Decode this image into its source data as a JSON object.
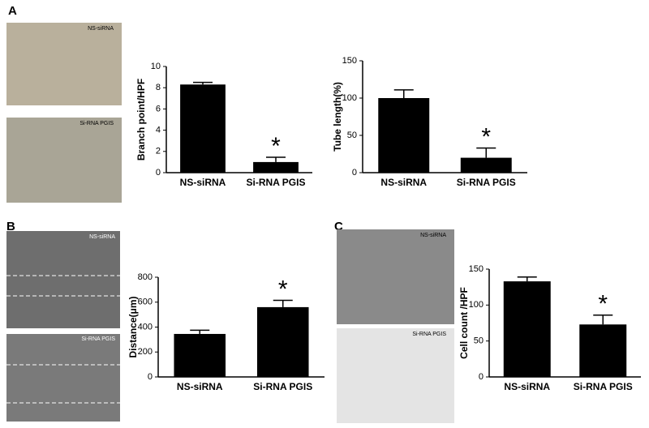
{
  "chart_data": [
    {
      "type": "bar",
      "y_label": "Branch point/HPF",
      "categories": [
        "NS-siRNA",
        "Si-RNA PGIS"
      ],
      "values": [
        8.3,
        1.0
      ],
      "errors": [
        0.2,
        0.45
      ],
      "color": "#000000",
      "ylim": [
        0,
        10
      ],
      "yticks": [
        0,
        2,
        4,
        6,
        8,
        10
      ],
      "annotations": [
        {
          "text": "*",
          "x": "Si-RNA PGIS"
        }
      ]
    },
    {
      "type": "bar",
      "y_label": "Tube length(%)",
      "categories": [
        "NS-siRNA",
        "Si-RNA PGIS"
      ],
      "values": [
        100,
        20
      ],
      "errors": [
        11,
        13
      ],
      "color": "#000000",
      "ylim": [
        0,
        150
      ],
      "yticks": [
        0,
        50,
        100,
        150
      ],
      "annotations": [
        {
          "text": "*",
          "x": "Si-RNA PGIS"
        }
      ]
    },
    {
      "type": "bar",
      "y_label": "Distance(μm)",
      "categories": [
        "NS-siRNA",
        "Si-RNA PGIS"
      ],
      "values": [
        345,
        560
      ],
      "errors": [
        30,
        55
      ],
      "color": "#000000",
      "ylim": [
        0,
        800
      ],
      "yticks": [
        0,
        200,
        400,
        600,
        800
      ],
      "annotations": [
        {
          "text": "*",
          "x": "Si-RNA PGIS"
        }
      ]
    },
    {
      "type": "bar",
      "y_label": "Cell count /HPF",
      "categories": [
        "NS-siRNA",
        "Si-RNA PGIS"
      ],
      "values": [
        133,
        73
      ],
      "errors": [
        6,
        13
      ],
      "color": "#000000",
      "ylim": [
        0,
        150
      ],
      "yticks": [
        0,
        50,
        100,
        150
      ],
      "annotations": [
        {
          "text": "*",
          "x": "Si-RNA PGIS"
        }
      ]
    }
  ],
  "panels": [
    {
      "label": "A",
      "images": [
        "NS-siRNA",
        "Si-RNA PGIS"
      ]
    },
    {
      "label": "B",
      "images": [
        "NS-siRNA",
        "Si-RNA PGIS"
      ]
    },
    {
      "label": "C",
      "images": [
        "NS-siRNA",
        "Si-RNA PGIS"
      ]
    }
  ]
}
